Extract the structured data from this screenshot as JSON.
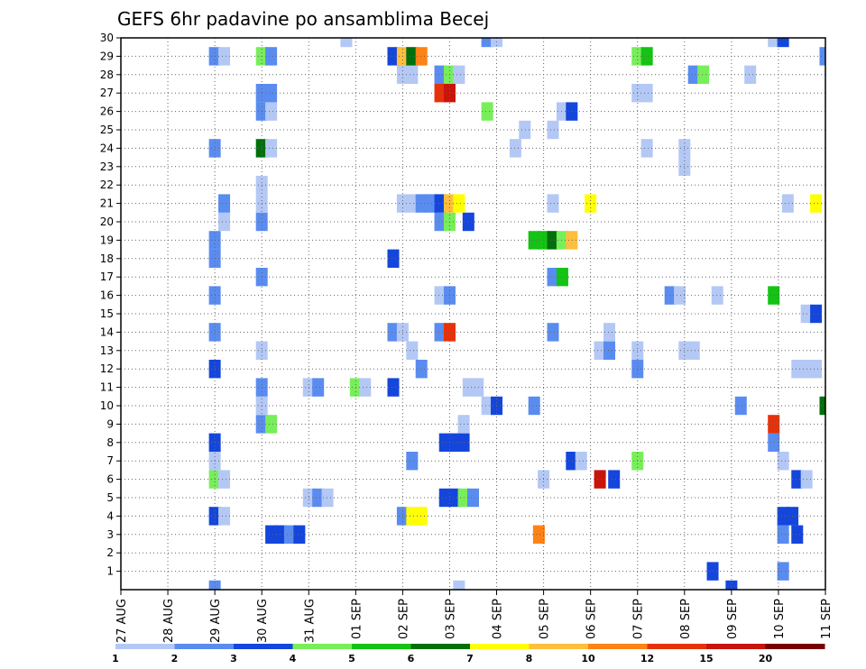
{
  "chart_data": {
    "type": "heatmap",
    "title": "GEFS 6hr padavine po ansamblima Becej",
    "x_tick_labels": [
      "27 AUG",
      "28 AUG",
      "29 AUG",
      "30 AUG",
      "31 AUG",
      "01 SEP",
      "02 SEP",
      "03 SEP",
      "04 SEP",
      "05 SEP",
      "06 SEP",
      "07 SEP",
      "08 SEP",
      "09 SEP",
      "10 SEP",
      "11 SEP"
    ],
    "x_range_days": [
      0,
      15
    ],
    "y_tick_labels": [
      "1",
      "2",
      "3",
      "4",
      "5",
      "6",
      "7",
      "8",
      "9",
      "10",
      "11",
      "12",
      "13",
      "14",
      "15",
      "16",
      "17",
      "18",
      "19",
      "20",
      "21",
      "22",
      "23",
      "24",
      "25",
      "26",
      "27",
      "28",
      "29",
      "30"
    ],
    "y_range": [
      0,
      30
    ],
    "grid": "dotted",
    "colorbar": {
      "levels": [
        "1",
        "2",
        "3",
        "4",
        "5",
        "6",
        "7",
        "8",
        "10",
        "12",
        "15",
        "20"
      ],
      "colors": [
        "#b4c8f5",
        "#5a8cf0",
        "#1446dc",
        "#78ee5a",
        "#14c314",
        "#00700a",
        "#ffff00",
        "#ffbe3c",
        "#ff8214",
        "#e6320a",
        "#c8140a",
        "#780000"
      ]
    },
    "cells": [
      [
        2.0,
        0,
        1
      ],
      [
        7.2,
        0,
        0
      ],
      [
        13.0,
        0,
        2
      ],
      [
        12.6,
        1,
        2
      ],
      [
        14.1,
        1,
        1
      ],
      [
        3.2,
        3,
        2
      ],
      [
        3.4,
        3,
        2
      ],
      [
        3.6,
        3,
        1
      ],
      [
        3.8,
        3,
        2
      ],
      [
        8.9,
        3,
        8
      ],
      [
        14.1,
        3,
        1
      ],
      [
        14.4,
        3,
        2
      ],
      [
        2.0,
        4,
        2
      ],
      [
        2.2,
        4,
        0
      ],
      [
        6.0,
        4,
        1
      ],
      [
        6.2,
        4,
        6
      ],
      [
        6.4,
        4,
        6
      ],
      [
        14.1,
        4,
        2
      ],
      [
        14.3,
        4,
        2
      ],
      [
        4.0,
        5,
        0
      ],
      [
        4.2,
        5,
        1
      ],
      [
        4.4,
        5,
        0
      ],
      [
        6.9,
        5,
        2
      ],
      [
        7.1,
        5,
        2
      ],
      [
        7.3,
        5,
        3
      ],
      [
        7.5,
        5,
        1
      ],
      [
        2.0,
        6,
        3
      ],
      [
        2.2,
        6,
        0
      ],
      [
        9.0,
        6,
        0
      ],
      [
        10.2,
        6,
        10
      ],
      [
        10.5,
        6,
        2
      ],
      [
        14.4,
        6,
        2
      ],
      [
        14.6,
        6,
        0
      ],
      [
        2.0,
        7,
        0
      ],
      [
        6.2,
        7,
        1
      ],
      [
        9.6,
        7,
        2
      ],
      [
        9.8,
        7,
        0
      ],
      [
        11.0,
        7,
        3
      ],
      [
        14.1,
        7,
        0
      ],
      [
        2.0,
        8,
        2
      ],
      [
        6.9,
        8,
        2
      ],
      [
        7.1,
        8,
        2
      ],
      [
        7.3,
        8,
        2
      ],
      [
        13.9,
        8,
        1
      ],
      [
        3.0,
        9,
        1
      ],
      [
        3.2,
        9,
        3
      ],
      [
        7.3,
        9,
        0
      ],
      [
        13.9,
        9,
        9
      ],
      [
        3.0,
        10,
        0
      ],
      [
        7.8,
        10,
        0
      ],
      [
        8.0,
        10,
        2
      ],
      [
        8.8,
        10,
        1
      ],
      [
        13.2,
        10,
        1
      ],
      [
        15.0,
        10,
        5
      ],
      [
        3.0,
        11,
        1
      ],
      [
        4.0,
        11,
        0
      ],
      [
        4.2,
        11,
        1
      ],
      [
        5.0,
        11,
        3
      ],
      [
        5.2,
        11,
        0
      ],
      [
        5.8,
        11,
        2
      ],
      [
        7.4,
        11,
        0
      ],
      [
        7.6,
        11,
        0
      ],
      [
        2.0,
        12,
        2
      ],
      [
        6.4,
        12,
        1
      ],
      [
        11.0,
        12,
        1
      ],
      [
        14.4,
        12,
        0
      ],
      [
        14.6,
        12,
        0
      ],
      [
        14.8,
        12,
        0
      ],
      [
        3.0,
        13,
        0
      ],
      [
        6.2,
        13,
        0
      ],
      [
        10.2,
        13,
        0
      ],
      [
        10.4,
        13,
        1
      ],
      [
        11.0,
        13,
        0
      ],
      [
        12.0,
        13,
        0
      ],
      [
        12.2,
        13,
        0
      ],
      [
        2.0,
        14,
        1
      ],
      [
        5.8,
        14,
        1
      ],
      [
        6.0,
        14,
        0
      ],
      [
        6.8,
        14,
        1
      ],
      [
        7.0,
        14,
        9
      ],
      [
        9.2,
        14,
        1
      ],
      [
        10.4,
        14,
        0
      ],
      [
        14.6,
        15,
        0
      ],
      [
        14.8,
        15,
        2
      ],
      [
        2.0,
        16,
        1
      ],
      [
        6.8,
        16,
        0
      ],
      [
        7.0,
        16,
        1
      ],
      [
        11.7,
        16,
        1
      ],
      [
        11.9,
        16,
        0
      ],
      [
        12.7,
        16,
        0
      ],
      [
        13.9,
        16,
        4
      ],
      [
        3.0,
        17,
        1
      ],
      [
        9.2,
        17,
        1
      ],
      [
        9.4,
        17,
        4
      ],
      [
        2.0,
        18,
        1
      ],
      [
        5.8,
        18,
        2
      ],
      [
        2.0,
        19,
        1
      ],
      [
        8.8,
        19,
        4
      ],
      [
        9.0,
        19,
        4
      ],
      [
        9.2,
        19,
        5
      ],
      [
        9.4,
        19,
        3
      ],
      [
        9.6,
        19,
        7
      ],
      [
        2.2,
        20,
        0
      ],
      [
        3.0,
        20,
        1
      ],
      [
        6.8,
        20,
        1
      ],
      [
        7.0,
        20,
        3
      ],
      [
        7.4,
        20,
        2
      ],
      [
        2.2,
        21,
        1
      ],
      [
        3.0,
        21,
        0
      ],
      [
        6.0,
        21,
        0
      ],
      [
        6.2,
        21,
        0
      ],
      [
        6.4,
        21,
        1
      ],
      [
        6.6,
        21,
        1
      ],
      [
        6.8,
        21,
        2
      ],
      [
        7.0,
        21,
        7
      ],
      [
        7.2,
        21,
        6
      ],
      [
        9.2,
        21,
        0
      ],
      [
        10.0,
        21,
        6
      ],
      [
        14.2,
        21,
        0
      ],
      [
        14.8,
        21,
        6
      ],
      [
        3.0,
        22,
        0
      ],
      [
        12.0,
        23,
        0
      ],
      [
        2.0,
        24,
        1
      ],
      [
        3.0,
        24,
        5
      ],
      [
        3.2,
        24,
        0
      ],
      [
        8.4,
        24,
        0
      ],
      [
        11.2,
        24,
        0
      ],
      [
        12.0,
        24,
        0
      ],
      [
        8.6,
        25,
        0
      ],
      [
        9.2,
        25,
        0
      ],
      [
        3.0,
        26,
        1
      ],
      [
        3.2,
        26,
        0
      ],
      [
        7.8,
        26,
        3
      ],
      [
        9.4,
        26,
        0
      ],
      [
        9.6,
        26,
        2
      ],
      [
        3.0,
        27,
        1
      ],
      [
        3.2,
        27,
        1
      ],
      [
        6.8,
        27,
        9
      ],
      [
        7.0,
        27,
        10
      ],
      [
        11.0,
        27,
        0
      ],
      [
        11.2,
        27,
        0
      ],
      [
        6.0,
        28,
        0
      ],
      [
        6.2,
        28,
        0
      ],
      [
        6.8,
        28,
        1
      ],
      [
        7.0,
        28,
        3
      ],
      [
        7.2,
        28,
        0
      ],
      [
        12.2,
        28,
        1
      ],
      [
        12.4,
        28,
        3
      ],
      [
        13.4,
        28,
        0
      ],
      [
        2.0,
        29,
        1
      ],
      [
        2.2,
        29,
        0
      ],
      [
        3.0,
        29,
        3
      ],
      [
        3.2,
        29,
        1
      ],
      [
        5.8,
        29,
        2
      ],
      [
        6.0,
        29,
        7
      ],
      [
        6.2,
        29,
        5
      ],
      [
        6.4,
        29,
        8
      ],
      [
        11.0,
        29,
        3
      ],
      [
        11.2,
        29,
        4
      ],
      [
        15.0,
        29,
        1
      ],
      [
        4.8,
        30,
        0
      ],
      [
        7.8,
        30,
        1
      ],
      [
        8.0,
        30,
        0
      ],
      [
        13.9,
        30,
        0
      ],
      [
        14.1,
        30,
        2
      ]
    ]
  }
}
